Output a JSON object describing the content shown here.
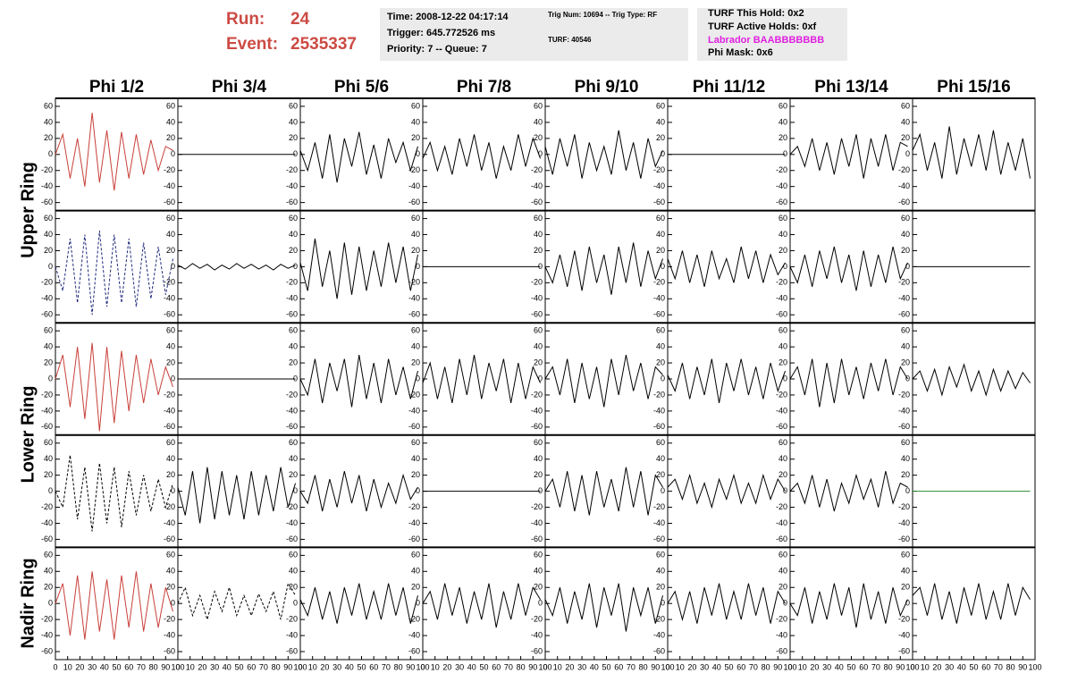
{
  "header": {
    "run_label": "Run:",
    "run": 24,
    "event_label": "Event:",
    "event": 2535337,
    "box1": [
      "Time: 2008-12-22 04:17:14",
      "Trigger: 645.772526 ms",
      "Priority: 7 -- Queue: 7"
    ],
    "box2": [
      "Trig Num: 10694 -- Trig Type: RF",
      "TURF: 40546"
    ],
    "box3": [
      "TURF This Hold: 0x2",
      "TURF Active Holds: 0xf",
      "Labrador BAABBBBBBB",
      "Phi Mask: 0x6"
    ]
  },
  "chart_data": {
    "type": "line",
    "columns": [
      "Phi 1/2",
      "Phi 3/4",
      "Phi 5/6",
      "Phi 7/8",
      "Phi 9/10",
      "Phi 11/12",
      "Phi 13/14",
      "Phi 15/16"
    ],
    "rings": [
      "Upper Ring",
      "Lower Ring",
      "Nadir Ring"
    ],
    "xlim": [
      0,
      100
    ],
    "ylim": [
      -70,
      70
    ],
    "xticks": [
      0,
      10,
      20,
      30,
      40,
      50,
      60,
      70,
      80,
      90,
      100
    ],
    "yticks": [
      -60,
      -40,
      -20,
      0,
      20,
      40,
      60
    ],
    "x": [
      0,
      6,
      12,
      18,
      24,
      30,
      36,
      42,
      48,
      54,
      60,
      66,
      72,
      78,
      84,
      90,
      96
    ],
    "panels": [
      [
        {
          "color": "#c8403a",
          "dashed": false,
          "values": [
            0,
            25,
            -30,
            20,
            -40,
            52,
            -35,
            30,
            -45,
            28,
            -30,
            25,
            -25,
            18,
            -20,
            10,
            5
          ]
        },
        {
          "color": "#000000",
          "dashed": false,
          "values": [
            0,
            0,
            0,
            0,
            0,
            0,
            0,
            0,
            0,
            0,
            0,
            0,
            0,
            0,
            0,
            0,
            0
          ]
        },
        {
          "color": "#000000",
          "dashed": false,
          "values": [
            5,
            -20,
            15,
            -30,
            25,
            -35,
            20,
            -15,
            28,
            -25,
            12,
            -30,
            20,
            -10,
            15,
            -20,
            10
          ]
        },
        {
          "color": "#000000",
          "dashed": false,
          "values": [
            -5,
            15,
            -20,
            10,
            -25,
            20,
            -15,
            25,
            -20,
            15,
            -30,
            10,
            -20,
            25,
            -15,
            20,
            -5
          ]
        },
        {
          "color": "#000000",
          "dashed": false,
          "values": [
            10,
            -25,
            20,
            -15,
            25,
            -30,
            15,
            -20,
            10,
            -25,
            30,
            -20,
            15,
            -30,
            20,
            -15,
            5
          ]
        },
        {
          "color": "#000000",
          "dashed": false,
          "values": [
            0,
            0,
            0,
            0,
            0,
            0,
            0,
            0,
            0,
            0,
            0,
            0,
            0,
            0,
            0,
            0,
            0
          ]
        },
        {
          "color": "#000000",
          "dashed": false,
          "values": [
            0,
            10,
            -15,
            20,
            -20,
            15,
            -25,
            20,
            -15,
            25,
            -30,
            20,
            -15,
            25,
            -20,
            15,
            10
          ]
        },
        {
          "color": "#000000",
          "dashed": false,
          "values": [
            5,
            25,
            -20,
            15,
            -30,
            35,
            -25,
            20,
            -15,
            25,
            -20,
            30,
            -25,
            15,
            -20,
            20,
            -30
          ]
        }
      ],
      [
        {
          "color": "#1f2a7a",
          "dashed": true,
          "values": [
            0,
            -30,
            35,
            -45,
            40,
            -60,
            45,
            -50,
            40,
            -45,
            35,
            -50,
            30,
            -40,
            25,
            -35,
            10
          ]
        },
        {
          "color": "#000000",
          "dashed": false,
          "values": [
            2,
            -3,
            4,
            -2,
            3,
            -4,
            2,
            -3,
            4,
            -2,
            3,
            -3,
            2,
            -4,
            3,
            -2,
            2
          ]
        },
        {
          "color": "#000000",
          "dashed": false,
          "values": [
            5,
            -30,
            35,
            -25,
            20,
            -40,
            30,
            -35,
            25,
            -30,
            20,
            -25,
            30,
            -20,
            25,
            -30,
            15
          ]
        },
        {
          "color": "#000000",
          "dashed": false,
          "values": [
            0,
            0,
            0,
            0,
            0,
            0,
            0,
            0,
            0,
            0,
            0,
            0,
            0,
            0,
            0,
            0,
            0
          ]
        },
        {
          "color": "#000000",
          "dashed": false,
          "values": [
            0,
            -20,
            15,
            -25,
            20,
            -30,
            25,
            -20,
            15,
            -35,
            25,
            -20,
            30,
            -25,
            20,
            -15,
            10
          ]
        },
        {
          "color": "#000000",
          "dashed": false,
          "values": [
            10,
            -15,
            20,
            -20,
            15,
            -25,
            20,
            -15,
            10,
            -20,
            25,
            -15,
            20,
            -20,
            15,
            -10,
            5
          ]
        },
        {
          "color": "#000000",
          "dashed": false,
          "values": [
            0,
            -20,
            15,
            -25,
            20,
            -15,
            25,
            -20,
            15,
            -30,
            20,
            -25,
            15,
            -20,
            25,
            -15,
            5
          ]
        },
        {
          "color": "#000000",
          "dashed": false,
          "values": [
            0,
            0,
            0,
            0,
            0,
            0,
            0,
            0,
            0,
            0,
            0,
            0,
            0,
            0,
            0,
            0,
            0
          ]
        }
      ],
      [
        {
          "color": "#c8403a",
          "dashed": false,
          "values": [
            0,
            30,
            -35,
            40,
            -50,
            45,
            -65,
            40,
            -55,
            35,
            -40,
            30,
            -30,
            25,
            -20,
            15,
            -10
          ]
        },
        {
          "color": "#000000",
          "dashed": false,
          "values": [
            0,
            0,
            0,
            0,
            0,
            0,
            0,
            0,
            0,
            0,
            0,
            0,
            0,
            0,
            0,
            0,
            0
          ]
        },
        {
          "color": "#000000",
          "dashed": false,
          "values": [
            0,
            -20,
            25,
            -30,
            20,
            -15,
            25,
            -35,
            30,
            -25,
            20,
            -30,
            25,
            -20,
            15,
            -25,
            10
          ]
        },
        {
          "color": "#000000",
          "dashed": false,
          "values": [
            -5,
            20,
            -25,
            15,
            -30,
            25,
            -20,
            30,
            -25,
            20,
            -15,
            25,
            -30,
            20,
            -25,
            15,
            -5
          ]
        },
        {
          "color": "#000000",
          "dashed": false,
          "values": [
            0,
            15,
            -20,
            25,
            -30,
            20,
            -25,
            15,
            -35,
            25,
            -20,
            30,
            -15,
            20,
            -25,
            15,
            5
          ]
        },
        {
          "color": "#000000",
          "dashed": false,
          "values": [
            5,
            -15,
            20,
            -25,
            15,
            -20,
            25,
            -30,
            20,
            -15,
            25,
            -20,
            15,
            -25,
            20,
            -15,
            10
          ]
        },
        {
          "color": "#000000",
          "dashed": false,
          "values": [
            0,
            15,
            -20,
            25,
            -35,
            20,
            -30,
            25,
            -20,
            15,
            -25,
            20,
            -15,
            25,
            -20,
            15,
            0
          ]
        },
        {
          "color": "#000000",
          "dashed": false,
          "values": [
            0,
            10,
            -15,
            12,
            -20,
            15,
            -10,
            18,
            -15,
            10,
            -20,
            12,
            -15,
            10,
            -12,
            8,
            -5
          ]
        }
      ],
      [
        {
          "color": "#000000",
          "dashed": true,
          "values": [
            0,
            -20,
            45,
            -35,
            30,
            -50,
            35,
            -40,
            30,
            -45,
            25,
            -30,
            20,
            -25,
            15,
            -20,
            10
          ]
        },
        {
          "color": "#000000",
          "dashed": false,
          "values": [
            5,
            -30,
            25,
            -40,
            30,
            -35,
            25,
            -30,
            20,
            -35,
            25,
            -30,
            20,
            -25,
            30,
            -20,
            10
          ]
        },
        {
          "color": "#000000",
          "dashed": false,
          "values": [
            0,
            -15,
            20,
            -25,
            15,
            -20,
            25,
            -15,
            20,
            -25,
            15,
            -20,
            10,
            -15,
            20,
            -10,
            5
          ]
        },
        {
          "color": "#000000",
          "dashed": false,
          "values": [
            0,
            0,
            0,
            0,
            0,
            0,
            0,
            0,
            0,
            0,
            0,
            0,
            0,
            0,
            0,
            0,
            0
          ]
        },
        {
          "color": "#000000",
          "dashed": false,
          "values": [
            0,
            15,
            -20,
            25,
            -25,
            20,
            -30,
            25,
            -20,
            15,
            -25,
            30,
            -20,
            25,
            -30,
            20,
            5
          ]
        },
        {
          "color": "#000000",
          "dashed": false,
          "values": [
            5,
            15,
            -10,
            20,
            -15,
            10,
            -20,
            15,
            -10,
            20,
            -15,
            10,
            -15,
            20,
            -10,
            15,
            0
          ]
        },
        {
          "color": "#000000",
          "dashed": false,
          "values": [
            0,
            10,
            -15,
            20,
            -20,
            15,
            -25,
            10,
            -15,
            20,
            -10,
            15,
            -20,
            25,
            -15,
            10,
            5
          ]
        },
        {
          "color": "#2e8b2e",
          "dashed": false,
          "values": [
            0,
            0,
            0,
            0,
            0,
            0,
            0,
            0,
            0,
            0,
            0,
            0,
            0,
            0,
            0,
            0,
            0
          ]
        }
      ],
      [
        {
          "color": "#c8403a",
          "dashed": false,
          "values": [
            0,
            25,
            -40,
            35,
            -45,
            40,
            -35,
            30,
            -45,
            35,
            -30,
            40,
            -35,
            25,
            -30,
            20,
            -10
          ]
        },
        {
          "color": "#000000",
          "dashed": true,
          "values": [
            0,
            20,
            -15,
            10,
            -20,
            15,
            -10,
            20,
            -15,
            10,
            -15,
            12,
            -10,
            15,
            -20,
            25,
            10
          ]
        },
        {
          "color": "#000000",
          "dashed": false,
          "values": [
            5,
            -15,
            20,
            -20,
            15,
            -25,
            20,
            -15,
            25,
            -20,
            15,
            -20,
            25,
            -15,
            20,
            -25,
            10
          ]
        },
        {
          "color": "#000000",
          "dashed": false,
          "values": [
            0,
            15,
            -20,
            25,
            -15,
            20,
            -25,
            15,
            -20,
            25,
            -30,
            15,
            -20,
            25,
            -15,
            20,
            5
          ]
        },
        {
          "color": "#000000",
          "dashed": false,
          "values": [
            5,
            -15,
            20,
            -25,
            15,
            -20,
            25,
            -30,
            20,
            -15,
            25,
            -35,
            20,
            -15,
            20,
            -25,
            10
          ]
        },
        {
          "color": "#000000",
          "dashed": false,
          "values": [
            0,
            15,
            -20,
            15,
            -25,
            20,
            -15,
            25,
            -20,
            15,
            -20,
            25,
            -15,
            20,
            -25,
            15,
            0
          ]
        },
        {
          "color": "#000000",
          "dashed": false,
          "values": [
            0,
            -15,
            20,
            -25,
            15,
            -20,
            25,
            -15,
            20,
            -30,
            25,
            -20,
            15,
            -25,
            20,
            -15,
            5
          ]
        },
        {
          "color": "#000000",
          "dashed": false,
          "values": [
            10,
            20,
            -15,
            25,
            -20,
            15,
            -25,
            20,
            -15,
            25,
            -20,
            15,
            -20,
            25,
            -15,
            20,
            5
          ]
        }
      ]
    ]
  }
}
